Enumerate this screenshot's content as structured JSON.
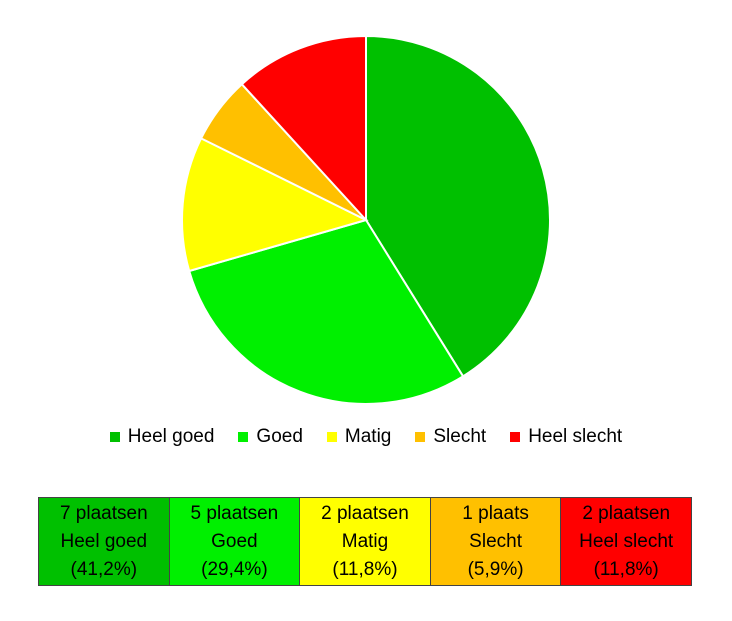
{
  "chart_data": {
    "type": "pie",
    "slices": [
      {
        "label": "Heel goed",
        "value": 41.2,
        "color": "#00c000"
      },
      {
        "label": "Goed",
        "value": 29.4,
        "color": "#00f000"
      },
      {
        "label": "Matig",
        "value": 11.8,
        "color": "#ffff00"
      },
      {
        "label": "Slecht",
        "value": 5.9,
        "color": "#ffc000"
      },
      {
        "label": "Heel slecht",
        "value": 11.8,
        "color": "#ff0000"
      }
    ],
    "start_angle_deg": 0,
    "direction": "clockwise",
    "legend_position": "bottom"
  },
  "summary_table": [
    {
      "count": "7 plaatsen",
      "label": "Heel goed",
      "percent": "(41,2%)",
      "color": "#00c000"
    },
    {
      "count": "5 plaatsen",
      "label": "Goed",
      "percent": "(29,4%)",
      "color": "#00f000"
    },
    {
      "count": "2 plaatsen",
      "label": "Matig",
      "percent": "(11,8%)",
      "color": "#ffff00"
    },
    {
      "count": "1 plaats",
      "label": "Slecht",
      "percent": "(5,9%)",
      "color": "#ffc000"
    },
    {
      "count": "2 plaatsen",
      "label": "Heel slecht",
      "percent": "(11,8%)",
      "color": "#ff0000"
    }
  ]
}
